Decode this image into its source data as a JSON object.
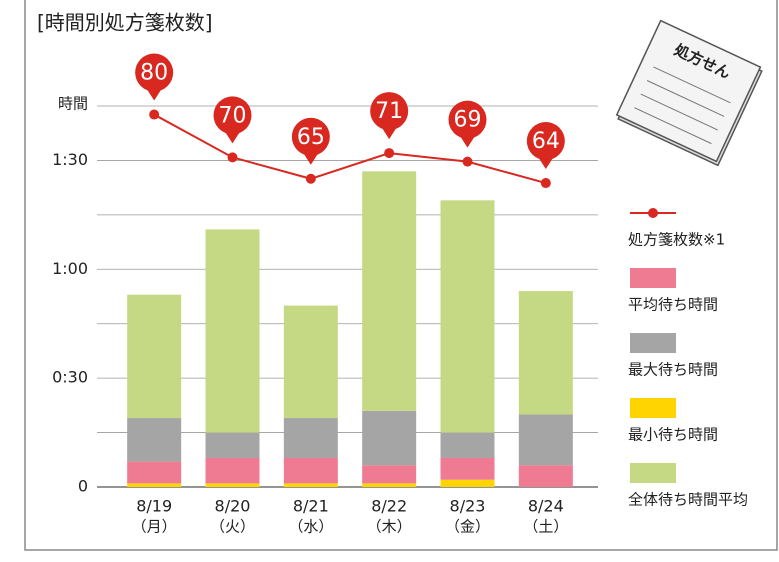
{
  "chart_data": {
    "type": "bar",
    "title": "[時間別処方箋枚数]",
    "ylabel": "時間",
    "illustration_text": "処方せん",
    "categories": [
      "8/19",
      "8/20",
      "8/21",
      "8/22",
      "8/23",
      "8/24"
    ],
    "category_weekdays": [
      "（月）",
      "（火）",
      "（水）",
      "（木）",
      "（金）",
      "（土）"
    ],
    "ylim": [
      0,
      105
    ],
    "yticks": [
      0,
      {
        "value": 30,
        "label": "0:30"
      },
      {
        "value": 60,
        "label": "1:00"
      },
      {
        "value": 90,
        "label": "1:30"
      }
    ],
    "minor_yticks": [
      15,
      45,
      75,
      105
    ],
    "y2lim": [
      -7,
      82
    ],
    "grid": true,
    "series": [
      {
        "name": "処方箋枚数※1",
        "type": "line",
        "axis": "y2",
        "color": "#d8281f",
        "values": [
          80,
          70,
          65,
          71,
          69,
          64
        ]
      },
      {
        "name": "平均待ち時間",
        "color": "#ee7b91",
        "values": [
          6,
          7,
          7,
          5,
          6,
          6
        ]
      },
      {
        "name": "最大待ち時間",
        "color": "#a5a5a5",
        "values": [
          12,
          7,
          11,
          15,
          7,
          14
        ]
      },
      {
        "name": "最小待ち時間",
        "color": "#ffd400",
        "values": [
          1,
          1,
          1,
          1,
          2,
          0
        ]
      },
      {
        "name": "全体待ち時間平均",
        "color": "#c5d985",
        "values": [
          34,
          56,
          31,
          66,
          64,
          34
        ]
      }
    ]
  }
}
